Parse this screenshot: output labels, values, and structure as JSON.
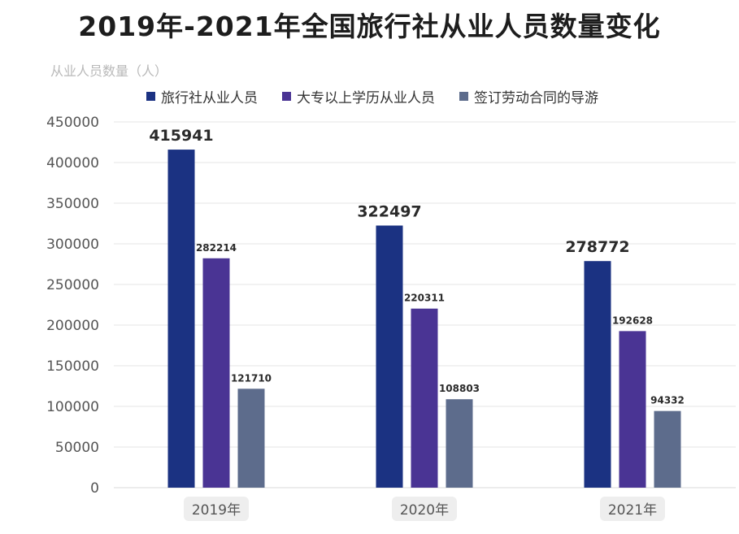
{
  "title": "2019年-2021年全国旅行社从业人员数量变化",
  "y_unit_label": "从业人员数量（人）",
  "colors": {
    "series1": "#1b3282",
    "series2": "#4a3494",
    "series3": "#5d6c8c",
    "grid": "#e6e6e6",
    "axis_text": "#555555",
    "cat_bg": "#eeeeee"
  },
  "chart_data": {
    "type": "bar",
    "categories": [
      "2019年",
      "2020年",
      "2021年"
    ],
    "series": [
      {
        "name": "旅行社从业人员",
        "values": [
          415941,
          322497,
          278772
        ]
      },
      {
        "name": "大专以上学历从业人员",
        "values": [
          282214,
          220311,
          192628
        ]
      },
      {
        "name": "签订劳动合同的导游",
        "values": [
          121710,
          108803,
          94332
        ]
      }
    ],
    "ylim": [
      0,
      450000
    ],
    "yticks": [
      0,
      50000,
      100000,
      150000,
      200000,
      250000,
      300000,
      350000,
      400000,
      450000
    ],
    "grid": true,
    "legend_position": "top"
  }
}
